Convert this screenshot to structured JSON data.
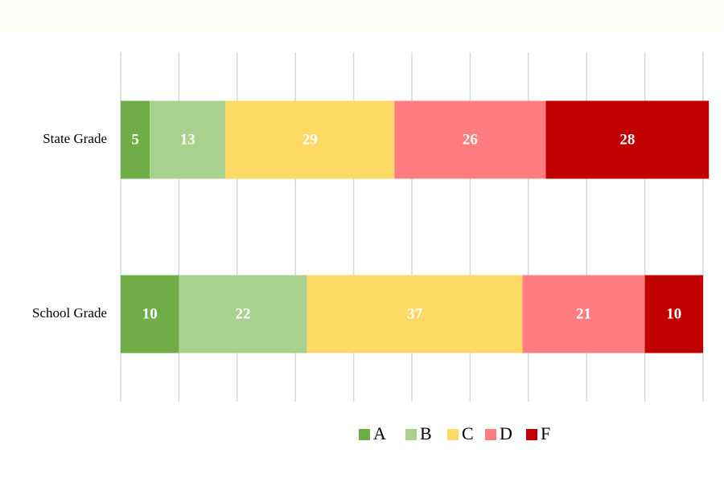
{
  "chart_data": {
    "type": "stacked_bar_horizontal",
    "categories": [
      "State Grade",
      "School Grade"
    ],
    "series": [
      {
        "name": "A",
        "color": "#70ad47",
        "values": [
          5,
          10
        ]
      },
      {
        "name": "B",
        "color": "#a9d18e",
        "values": [
          13,
          22
        ]
      },
      {
        "name": "C",
        "color": "#ffd966",
        "values": [
          29,
          37
        ]
      },
      {
        "name": "D",
        "color": "#ff7c80",
        "values": [
          26,
          21
        ]
      },
      {
        "name": "F",
        "color": "#c00000",
        "values": [
          28,
          10
        ]
      }
    ],
    "xlim": [
      0,
      100
    ],
    "xticks": [
      0,
      10,
      20,
      30,
      40,
      50,
      60,
      70,
      80,
      90,
      100
    ],
    "grid": true,
    "legend": "bottom"
  }
}
